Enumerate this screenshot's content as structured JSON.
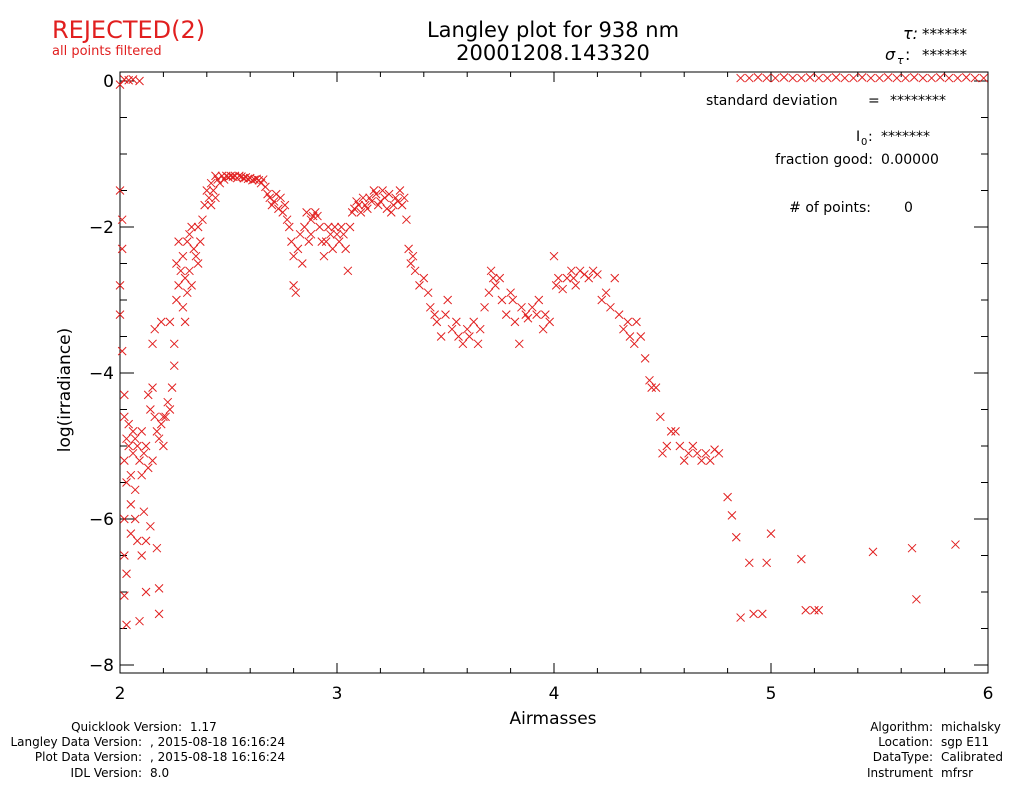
{
  "status": {
    "label": "REJECTED(2)",
    "sub": "all points filtered",
    "color": "#e11f1f"
  },
  "header": {
    "title_line1": "Langley plot for 938 nm",
    "title_line2": "20001208.143320",
    "tau_label": "τ:",
    "tau_value": "******",
    "sigma_label": "σ",
    "sigma_sub": "τ",
    "sigma_colon": ":",
    "sigma_value": "******"
  },
  "stats": {
    "std_label": "standard deviation",
    "std_eq": "=",
    "std_value": "********",
    "i0_label": "I",
    "i0_sub": "0",
    "i0_colon": ":",
    "i0_value": "*******",
    "fraction_label": "fraction good:",
    "fraction_value": "0.00000",
    "points_label": "# of points:",
    "points_value": "0"
  },
  "footer_left": {
    "labels": [
      "Quicklook Version:",
      "Langley Data Version:",
      "Plot Data Version:",
      "IDL Version:"
    ],
    "values": [
      "1.17",
      ", 2015-08-18 16:16:24",
      ", 2015-08-18 16:16:24",
      "8.0"
    ]
  },
  "footer_right": {
    "labels": [
      "Algorithm:",
      "Location:",
      "DataType:",
      "Instrument"
    ],
    "values": [
      "michalsky",
      "sgp E11",
      "Calibrated",
      "mfrsr"
    ]
  },
  "chart_data": {
    "type": "scatter",
    "marker": "x",
    "color": "#e11f1f",
    "xlabel": "Airmasses",
    "ylabel": "log(irradiance)",
    "xlim": [
      2,
      6
    ],
    "ylim": [
      -8.1,
      0
    ],
    "xticks": [
      2,
      3,
      4,
      5,
      6
    ],
    "yticks": [
      0,
      -2,
      -4,
      -6,
      -8
    ],
    "ytick_labels": [
      "0",
      "−2",
      "−4",
      "−6",
      "−8"
    ],
    "points": [
      [
        2.0,
        -1.5
      ],
      [
        2.01,
        -1.9
      ],
      [
        2.01,
        -2.3
      ],
      [
        2.0,
        -2.8
      ],
      [
        2.0,
        -3.2
      ],
      [
        2.01,
        -3.7
      ],
      [
        2.02,
        -4.3
      ],
      [
        2.02,
        -4.6
      ],
      [
        2.03,
        -4.9
      ],
      [
        2.02,
        -5.2
      ],
      [
        2.03,
        -5.5
      ],
      [
        2.02,
        -6.0
      ],
      [
        2.02,
        -6.5
      ],
      [
        2.03,
        -6.75
      ],
      [
        2.02,
        -7.05
      ],
      [
        2.03,
        -7.45
      ],
      [
        2.04,
        -4.7
      ],
      [
        2.04,
        -5.0
      ],
      [
        2.05,
        -5.4
      ],
      [
        2.05,
        -5.8
      ],
      [
        2.05,
        -6.2
      ],
      [
        2.06,
        -4.8
      ],
      [
        2.06,
        -5.1
      ],
      [
        2.07,
        -4.9
      ],
      [
        2.07,
        -5.6
      ],
      [
        2.07,
        -6.0
      ],
      [
        2.08,
        -5.0
      ],
      [
        2.08,
        -6.3
      ],
      [
        2.09,
        -5.2
      ],
      [
        2.09,
        -7.4
      ],
      [
        2.1,
        -4.8
      ],
      [
        2.1,
        -5.4
      ],
      [
        2.1,
        -6.5
      ],
      [
        2.11,
        -5.1
      ],
      [
        2.11,
        -5.9
      ],
      [
        2.12,
        -5.0
      ],
      [
        2.12,
        -6.3
      ],
      [
        2.12,
        -7.0
      ],
      [
        2.13,
        -4.3
      ],
      [
        2.13,
        -5.3
      ],
      [
        2.14,
        -4.5
      ],
      [
        2.14,
        -6.1
      ],
      [
        2.15,
        -4.2
      ],
      [
        2.15,
        -3.6
      ],
      [
        2.15,
        -5.2
      ],
      [
        2.16,
        -4.6
      ],
      [
        2.16,
        -3.4
      ],
      [
        2.17,
        -4.8
      ],
      [
        2.17,
        -6.4
      ],
      [
        2.18,
        -4.9
      ],
      [
        2.18,
        -7.3
      ],
      [
        2.18,
        -6.95
      ],
      [
        2.19,
        -4.7
      ],
      [
        2.19,
        -3.3
      ],
      [
        2.2,
        -4.6
      ],
      [
        2.2,
        -5.0
      ],
      [
        2.21,
        -4.6
      ],
      [
        2.22,
        -4.4
      ],
      [
        2.23,
        -4.5
      ],
      [
        2.23,
        -3.3
      ],
      [
        2.24,
        -4.2
      ],
      [
        2.25,
        -3.9
      ],
      [
        2.25,
        -3.6
      ],
      [
        2.26,
        -3.0
      ],
      [
        2.26,
        -2.5
      ],
      [
        2.27,
        -2.2
      ],
      [
        2.27,
        -2.8
      ],
      [
        2.28,
        -2.6
      ],
      [
        2.29,
        -3.1
      ],
      [
        2.29,
        -2.4
      ],
      [
        2.3,
        -2.7
      ],
      [
        2.3,
        -3.3
      ],
      [
        2.31,
        -2.9
      ],
      [
        2.31,
        -2.2
      ],
      [
        2.32,
        -2.1
      ],
      [
        2.32,
        -2.6
      ],
      [
        2.33,
        -2.0
      ],
      [
        2.33,
        -2.8
      ],
      [
        2.34,
        -2.3
      ],
      [
        2.35,
        -2.4
      ],
      [
        2.36,
        -2.5
      ],
      [
        2.36,
        -2.0
      ],
      [
        2.37,
        -2.2
      ],
      [
        2.38,
        -1.9
      ],
      [
        2.39,
        -1.7
      ],
      [
        2.4,
        -1.5
      ],
      [
        2.41,
        -1.6
      ],
      [
        2.42,
        -1.7
      ],
      [
        2.42,
        -1.4
      ],
      [
        2.43,
        -1.5
      ],
      [
        2.44,
        -1.6
      ],
      [
        2.44,
        -1.3
      ],
      [
        2.45,
        -1.35
      ],
      [
        2.46,
        -1.4
      ],
      [
        2.47,
        -1.3
      ],
      [
        2.48,
        -1.35
      ],
      [
        2.49,
        -1.3
      ],
      [
        2.5,
        -1.32
      ],
      [
        2.51,
        -1.3
      ],
      [
        2.52,
        -1.31
      ],
      [
        2.53,
        -1.3
      ],
      [
        2.54,
        -1.33
      ],
      [
        2.55,
        -1.3
      ],
      [
        2.56,
        -1.31
      ],
      [
        2.57,
        -1.33
      ],
      [
        2.58,
        -1.32
      ],
      [
        2.59,
        -1.34
      ],
      [
        2.6,
        -1.33
      ],
      [
        2.61,
        -1.36
      ],
      [
        2.62,
        -1.35
      ],
      [
        2.63,
        -1.34
      ],
      [
        2.64,
        -1.36
      ],
      [
        2.65,
        -1.4
      ],
      [
        2.66,
        -1.35
      ],
      [
        2.67,
        -1.45
      ],
      [
        2.68,
        -1.55
      ],
      [
        2.69,
        -1.6
      ],
      [
        2.7,
        -1.7
      ],
      [
        2.71,
        -1.65
      ],
      [
        2.72,
        -1.55
      ],
      [
        2.73,
        -1.75
      ],
      [
        2.74,
        -1.6
      ],
      [
        2.75,
        -1.8
      ],
      [
        2.76,
        -1.7
      ],
      [
        2.77,
        -1.9
      ],
      [
        2.78,
        -2.0
      ],
      [
        2.79,
        -2.2
      ],
      [
        2.8,
        -2.4
      ],
      [
        2.8,
        -2.8
      ],
      [
        2.81,
        -2.9
      ],
      [
        2.82,
        -2.3
      ],
      [
        2.83,
        -2.1
      ],
      [
        2.84,
        -2.5
      ],
      [
        2.85,
        -2.0
      ],
      [
        2.86,
        -1.8
      ],
      [
        2.87,
        -2.2
      ],
      [
        2.88,
        -1.9
      ],
      [
        2.88,
        -2.1
      ],
      [
        2.89,
        -1.85
      ],
      [
        2.9,
        -1.8
      ],
      [
        2.91,
        -1.85
      ],
      [
        2.92,
        -2.0
      ],
      [
        2.93,
        -2.2
      ],
      [
        2.94,
        -2.4
      ],
      [
        2.95,
        -2.2
      ],
      [
        2.96,
        -2.0
      ],
      [
        2.97,
        -2.1
      ],
      [
        2.98,
        -2.3
      ],
      [
        2.99,
        -2.0
      ],
      [
        3.0,
        -2.1
      ],
      [
        3.01,
        -2.2
      ],
      [
        3.02,
        -2.0
      ],
      [
        3.03,
        -2.1
      ],
      [
        3.04,
        -2.3
      ],
      [
        3.05,
        -2.6
      ],
      [
        3.06,
        -2.0
      ],
      [
        3.07,
        -1.8
      ],
      [
        3.08,
        -1.75
      ],
      [
        3.09,
        -1.65
      ],
      [
        3.1,
        -1.7
      ],
      [
        3.11,
        -1.8
      ],
      [
        3.12,
        -1.6
      ],
      [
        3.13,
        -1.7
      ],
      [
        3.14,
        -1.75
      ],
      [
        3.15,
        -1.6
      ],
      [
        3.16,
        -1.65
      ],
      [
        3.17,
        -1.5
      ],
      [
        3.18,
        -1.55
      ],
      [
        3.19,
        -1.7
      ],
      [
        3.2,
        -1.65
      ],
      [
        3.21,
        -1.5
      ],
      [
        3.22,
        -1.6
      ],
      [
        3.23,
        -1.75
      ],
      [
        3.24,
        -1.55
      ],
      [
        3.25,
        -1.8
      ],
      [
        3.26,
        -1.7
      ],
      [
        3.27,
        -1.6
      ],
      [
        3.28,
        -1.65
      ],
      [
        3.29,
        -1.5
      ],
      [
        3.3,
        -1.7
      ],
      [
        3.31,
        -1.6
      ],
      [
        3.32,
        -1.9
      ],
      [
        3.33,
        -2.3
      ],
      [
        3.34,
        -2.5
      ],
      [
        3.35,
        -2.4
      ],
      [
        3.36,
        -2.6
      ],
      [
        3.38,
        -2.8
      ],
      [
        3.4,
        -2.7
      ],
      [
        3.42,
        -2.9
      ],
      [
        3.43,
        -3.1
      ],
      [
        3.45,
        -3.2
      ],
      [
        3.46,
        -3.3
      ],
      [
        3.48,
        -3.5
      ],
      [
        3.5,
        -3.2
      ],
      [
        3.51,
        -3.0
      ],
      [
        3.53,
        -3.4
      ],
      [
        3.55,
        -3.3
      ],
      [
        3.56,
        -3.5
      ],
      [
        3.58,
        -3.6
      ],
      [
        3.6,
        -3.4
      ],
      [
        3.61,
        -3.5
      ],
      [
        3.63,
        -3.3
      ],
      [
        3.65,
        -3.6
      ],
      [
        3.66,
        -3.4
      ],
      [
        3.68,
        -3.1
      ],
      [
        3.7,
        -2.9
      ],
      [
        3.71,
        -2.6
      ],
      [
        3.72,
        -2.7
      ],
      [
        3.73,
        -2.8
      ],
      [
        3.75,
        -2.7
      ],
      [
        3.76,
        -3.0
      ],
      [
        3.78,
        -3.2
      ],
      [
        3.8,
        -2.9
      ],
      [
        3.81,
        -3.0
      ],
      [
        3.82,
        -3.3
      ],
      [
        3.84,
        -3.6
      ],
      [
        3.85,
        -3.1
      ],
      [
        3.87,
        -3.2
      ],
      [
        3.88,
        -3.25
      ],
      [
        3.9,
        -3.1
      ],
      [
        3.92,
        -3.2
      ],
      [
        3.93,
        -3.0
      ],
      [
        3.95,
        -3.4
      ],
      [
        3.96,
        -3.2
      ],
      [
        3.98,
        -3.3
      ],
      [
        4.0,
        -2.4
      ],
      [
        4.01,
        -2.8
      ],
      [
        4.02,
        -2.7
      ],
      [
        4.04,
        -2.85
      ],
      [
        4.06,
        -2.7
      ],
      [
        4.08,
        -2.6
      ],
      [
        4.09,
        -2.7
      ],
      [
        4.1,
        -2.8
      ],
      [
        4.12,
        -2.6
      ],
      [
        4.14,
        -2.65
      ],
      [
        4.16,
        -2.7
      ],
      [
        4.18,
        -2.6
      ],
      [
        4.2,
        -2.65
      ],
      [
        4.22,
        -3.0
      ],
      [
        4.24,
        -2.9
      ],
      [
        4.26,
        -3.1
      ],
      [
        4.28,
        -2.7
      ],
      [
        4.3,
        -3.2
      ],
      [
        4.32,
        -3.4
      ],
      [
        4.34,
        -3.3
      ],
      [
        4.35,
        -3.5
      ],
      [
        4.37,
        -3.6
      ],
      [
        4.38,
        -3.3
      ],
      [
        4.4,
        -3.5
      ],
      [
        4.42,
        -3.8
      ],
      [
        4.44,
        -4.1
      ],
      [
        4.45,
        -4.2
      ],
      [
        4.47,
        -4.2
      ],
      [
        4.49,
        -4.6
      ],
      [
        4.5,
        -5.1
      ],
      [
        4.52,
        -5.0
      ],
      [
        4.54,
        -4.8
      ],
      [
        4.56,
        -4.8
      ],
      [
        4.58,
        -5.0
      ],
      [
        4.6,
        -5.2
      ],
      [
        4.62,
        -5.1
      ],
      [
        4.64,
        -5.0
      ],
      [
        4.66,
        -5.1
      ],
      [
        4.68,
        -5.2
      ],
      [
        4.7,
        -5.1
      ],
      [
        4.72,
        -5.2
      ],
      [
        4.74,
        -5.05
      ],
      [
        4.76,
        -5.1
      ],
      [
        4.8,
        -5.7
      ],
      [
        4.82,
        -5.95
      ],
      [
        4.84,
        -6.25
      ],
      [
        4.86,
        -7.35
      ],
      [
        4.9,
        -6.6
      ],
      [
        4.92,
        -7.3
      ],
      [
        4.96,
        -7.3
      ],
      [
        4.98,
        -6.6
      ],
      [
        5.0,
        -6.2
      ],
      [
        5.14,
        -6.55
      ],
      [
        5.16,
        -7.25
      ],
      [
        5.2,
        -7.25
      ],
      [
        5.22,
        -7.25
      ],
      [
        5.47,
        -6.45
      ],
      [
        5.65,
        -6.4
      ],
      [
        5.67,
        -7.1
      ],
      [
        5.85,
        -6.35
      ],
      [
        2.0,
        -0.05
      ],
      [
        2.02,
        0.02
      ],
      [
        2.04,
        0.01
      ],
      [
        2.06,
        0.02
      ],
      [
        2.09,
        0.0
      ],
      [
        4.86,
        0.04
      ],
      [
        4.9,
        0.04
      ],
      [
        4.94,
        0.05
      ],
      [
        4.98,
        0.04
      ],
      [
        5.02,
        0.04
      ],
      [
        5.06,
        0.05
      ],
      [
        5.1,
        0.04
      ],
      [
        5.14,
        0.04
      ],
      [
        5.18,
        0.05
      ],
      [
        5.22,
        0.04
      ],
      [
        5.26,
        0.04
      ],
      [
        5.3,
        0.05
      ],
      [
        5.34,
        0.04
      ],
      [
        5.38,
        0.04
      ],
      [
        5.42,
        0.05
      ],
      [
        5.46,
        0.04
      ],
      [
        5.5,
        0.04
      ],
      [
        5.54,
        0.05
      ],
      [
        5.58,
        0.04
      ],
      [
        5.62,
        0.04
      ],
      [
        5.66,
        0.05
      ],
      [
        5.7,
        0.04
      ],
      [
        5.74,
        0.04
      ],
      [
        5.78,
        0.05
      ],
      [
        5.82,
        0.04
      ],
      [
        5.86,
        0.04
      ],
      [
        5.9,
        0.05
      ],
      [
        5.94,
        0.04
      ],
      [
        5.98,
        0.04
      ]
    ]
  }
}
